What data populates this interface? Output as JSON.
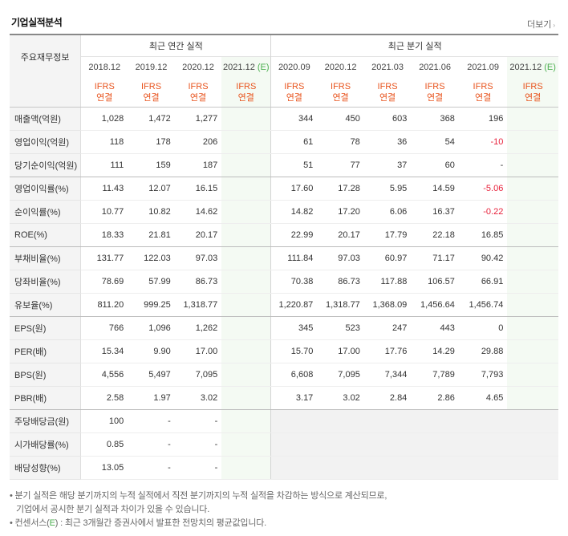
{
  "header": {
    "title": "기업실적분석",
    "more_label": "더보기",
    "more_arrow": "›"
  },
  "table": {
    "row_header_label": "주요재무정보",
    "annual_title": "최근 연간 실적",
    "quarter_title": "최근 분기 실적",
    "annual_periods": [
      "2018.12",
      "2019.12",
      "2020.12",
      "2021.12"
    ],
    "quarter_periods": [
      "2020.09",
      "2020.12",
      "2021.03",
      "2021.06",
      "2021.09",
      "2021.12"
    ],
    "estimate_suffix": "(E)",
    "basis_line1": "IFRS",
    "basis_line2": "연결",
    "rows": [
      {
        "label": "매출액(억원)",
        "annual": [
          "1,028",
          "1,472",
          "1,277",
          ""
        ],
        "quarter": [
          "344",
          "450",
          "603",
          "368",
          "196",
          ""
        ]
      },
      {
        "label": "영업이익(억원)",
        "annual": [
          "118",
          "178",
          "206",
          ""
        ],
        "quarter": [
          "61",
          "78",
          "36",
          "54",
          "-10",
          ""
        ]
      },
      {
        "label": "당기순이익(억원)",
        "annual": [
          "111",
          "159",
          "187",
          ""
        ],
        "quarter": [
          "51",
          "77",
          "37",
          "60",
          "-",
          ""
        ]
      },
      {
        "label": "영업이익률(%)",
        "annual": [
          "11.43",
          "12.07",
          "16.15",
          ""
        ],
        "quarter": [
          "17.60",
          "17.28",
          "5.95",
          "14.59",
          "-5.06",
          ""
        ]
      },
      {
        "label": "순이익률(%)",
        "annual": [
          "10.77",
          "10.82",
          "14.62",
          ""
        ],
        "quarter": [
          "14.82",
          "17.20",
          "6.06",
          "16.37",
          "-0.22",
          ""
        ]
      },
      {
        "label": "ROE(%)",
        "annual": [
          "18.33",
          "21.81",
          "20.17",
          ""
        ],
        "quarter": [
          "22.99",
          "20.17",
          "17.79",
          "22.18",
          "16.85",
          ""
        ]
      },
      {
        "label": "부채비율(%)",
        "annual": [
          "131.77",
          "122.03",
          "97.03",
          ""
        ],
        "quarter": [
          "111.84",
          "97.03",
          "60.97",
          "71.17",
          "90.42",
          ""
        ]
      },
      {
        "label": "당좌비율(%)",
        "annual": [
          "78.69",
          "57.99",
          "86.73",
          ""
        ],
        "quarter": [
          "70.38",
          "86.73",
          "117.88",
          "106.57",
          "66.91",
          ""
        ]
      },
      {
        "label": "유보율(%)",
        "annual": [
          "811.20",
          "999.25",
          "1,318.77",
          ""
        ],
        "quarter": [
          "1,220.87",
          "1,318.77",
          "1,368.09",
          "1,456.64",
          "1,456.74",
          ""
        ]
      },
      {
        "label": "EPS(원)",
        "annual": [
          "766",
          "1,096",
          "1,262",
          ""
        ],
        "quarter": [
          "345",
          "523",
          "247",
          "443",
          "0",
          ""
        ]
      },
      {
        "label": "PER(배)",
        "annual": [
          "15.34",
          "9.90",
          "17.00",
          ""
        ],
        "quarter": [
          "15.70",
          "17.00",
          "17.76",
          "14.29",
          "29.88",
          ""
        ]
      },
      {
        "label": "BPS(원)",
        "annual": [
          "4,556",
          "5,497",
          "7,095",
          ""
        ],
        "quarter": [
          "6,608",
          "7,095",
          "7,344",
          "7,789",
          "7,793",
          ""
        ]
      },
      {
        "label": "PBR(배)",
        "annual": [
          "2.58",
          "1.97",
          "3.02",
          ""
        ],
        "quarter": [
          "3.17",
          "3.02",
          "2.84",
          "2.86",
          "4.65",
          ""
        ]
      },
      {
        "label": "주당배당금(원)",
        "annual": [
          "100",
          "-",
          "-",
          ""
        ],
        "quarter": [
          "",
          "",
          "",
          "",
          "",
          ""
        ]
      },
      {
        "label": "시가배당률(%)",
        "annual": [
          "0.85",
          "-",
          "-",
          ""
        ],
        "quarter": [
          "",
          "",
          "",
          "",
          "",
          ""
        ]
      },
      {
        "label": "배당성향(%)",
        "annual": [
          "13.05",
          "-",
          "-",
          ""
        ],
        "quarter": [
          "",
          "",
          "",
          "",
          "",
          ""
        ]
      }
    ]
  },
  "notes": {
    "line1": "• 분기 실적은 해당 분기까지의 누적 실적에서 직전 분기까지의 누적 실적을 차감하는 방식으로 계산되므로,",
    "line2": "기업에서 공시한 분기 실적과 차이가 있을 수 있습니다.",
    "line3_prefix": "• 컨센서스(",
    "line3_e": "E",
    "line3_suffix": ") : 최근 3개월간 증권사에서 발표한 전망치의 평균값입니다."
  },
  "colors": {
    "negative": "#e8203a",
    "basis": "#e8541e",
    "estimate": "#4caf50"
  }
}
